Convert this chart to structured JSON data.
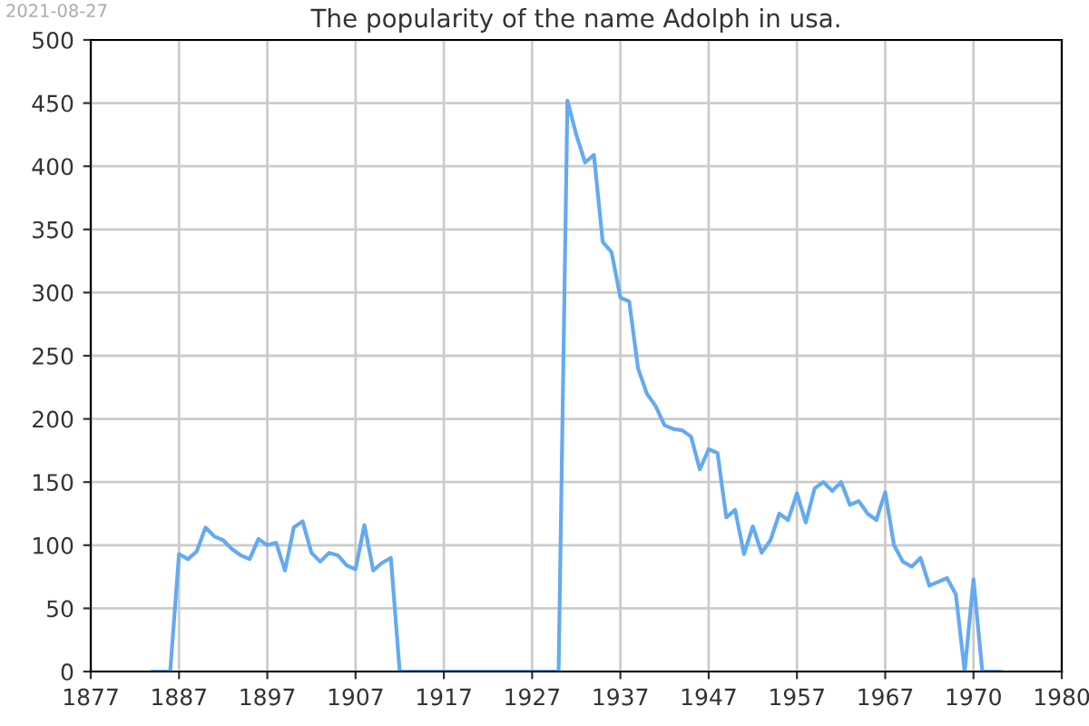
{
  "chart_data": {
    "type": "line",
    "title": "The popularity of the name Adolph in usa.",
    "annotations": [
      "2021-08-27"
    ],
    "categories": [
      "1877",
      null,
      null,
      null,
      null,
      null,
      null,
      null,
      null,
      null,
      "1887",
      null,
      null,
      null,
      null,
      null,
      null,
      null,
      null,
      null,
      "1897",
      null,
      null,
      null,
      null,
      null,
      null,
      null,
      null,
      null,
      "1907",
      null,
      null,
      null,
      null,
      null,
      null,
      null,
      null,
      null,
      "1917",
      null,
      null,
      null,
      null,
      null,
      null,
      null,
      null,
      null,
      "1927",
      null,
      null,
      null,
      null,
      null,
      null,
      null,
      null,
      null,
      "1937",
      null,
      null,
      null,
      null,
      null,
      null,
      null,
      null,
      null,
      "1947",
      null,
      null,
      null,
      null,
      null,
      null,
      null,
      null,
      null,
      "1957",
      null,
      null,
      null,
      null,
      null,
      null,
      null,
      null,
      null,
      "1967",
      null,
      null,
      null,
      null,
      null,
      null,
      null,
      null,
      null,
      "1970",
      null,
      null,
      null,
      null,
      null,
      null,
      null,
      null,
      null,
      "1980"
    ],
    "series": [
      {
        "color": "#64aaf0",
        "values": [
          null,
          null,
          null,
          null,
          null,
          null,
          null,
          0,
          0,
          0,
          93,
          89,
          95,
          114,
          107,
          104,
          97,
          92,
          89,
          105,
          100,
          102,
          80,
          114,
          119,
          94,
          87,
          94,
          92,
          84,
          81,
          116,
          80,
          86,
          90,
          0,
          0,
          0,
          0,
          0,
          0,
          0,
          0,
          0,
          0,
          0,
          0,
          0,
          0,
          0,
          0,
          0,
          0,
          0,
          452,
          425,
          403,
          409,
          340,
          332,
          296,
          293,
          240,
          220,
          210,
          195,
          192,
          191,
          186,
          160,
          176,
          173,
          122,
          128,
          93,
          115,
          94,
          104,
          125,
          120,
          141,
          118,
          145,
          150,
          143,
          150,
          132,
          135,
          125,
          120,
          142,
          100,
          87,
          83,
          90,
          68,
          71,
          74,
          61,
          0,
          73,
          0,
          0,
          0,
          null,
          null,
          null,
          null,
          null,
          null,
          null
        ]
      }
    ],
    "ylim": [
      0,
      500
    ],
    "yticks": [
      0,
      50,
      100,
      150,
      200,
      250,
      300,
      350,
      400,
      450,
      500
    ],
    "grid": true
  }
}
